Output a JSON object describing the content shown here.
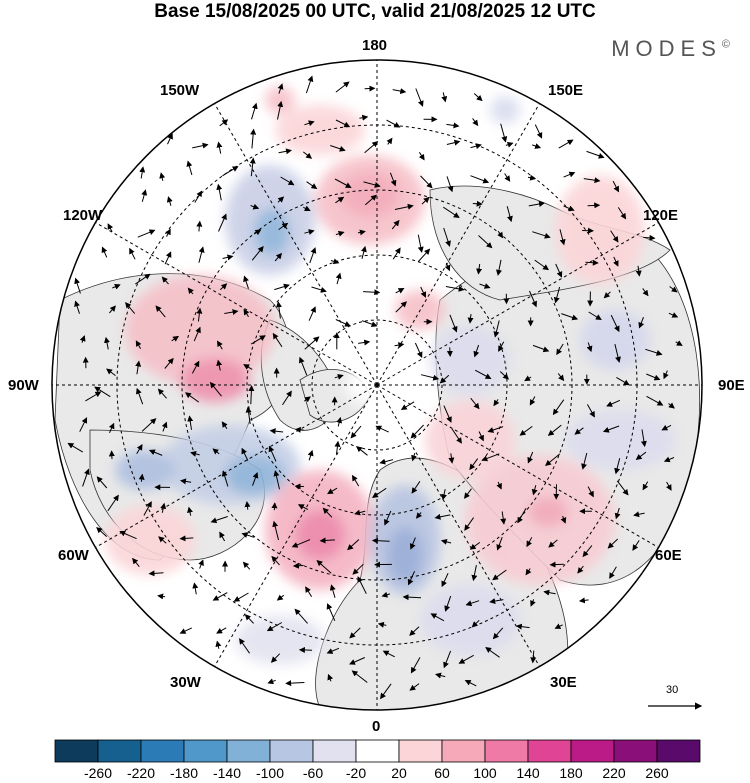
{
  "title": "Base 15/08/2025 00 UTC, valid 21/08/2025 12 UTC",
  "brand": "MODES",
  "brand_mark": "©",
  "longitude_labels": {
    "lon_180": "180",
    "lon_150w": "150W",
    "lon_150e": "150E",
    "lon_120w": "120W",
    "lon_120e": "120E",
    "lon_90w": "90W",
    "lon_90e": "90E",
    "lon_60w": "60W",
    "lon_60e": "60E",
    "lon_30w": "30W",
    "lon_30e": "30E",
    "lon_0": "0"
  },
  "reference_vector": {
    "value": "30"
  },
  "colorbar": {
    "labels": [
      "-260",
      "-220",
      "-180",
      "-140",
      "-100",
      "-60",
      "-20",
      "20",
      "60",
      "100",
      "140",
      "180",
      "220",
      "260"
    ],
    "colors": [
      "#0d3b5c",
      "#15608f",
      "#2b7bb6",
      "#4f98c9",
      "#82b1d8",
      "#b7c7e3",
      "#e1e1ef",
      "#ffffff",
      "#fbd5d8",
      "#f6a9b9",
      "#ef7aa5",
      "#e04495",
      "#bb1b86",
      "#8a0f78",
      "#5a0a6a"
    ]
  },
  "colors": {
    "land": "#e9e9e9",
    "grid": "#000000"
  }
}
